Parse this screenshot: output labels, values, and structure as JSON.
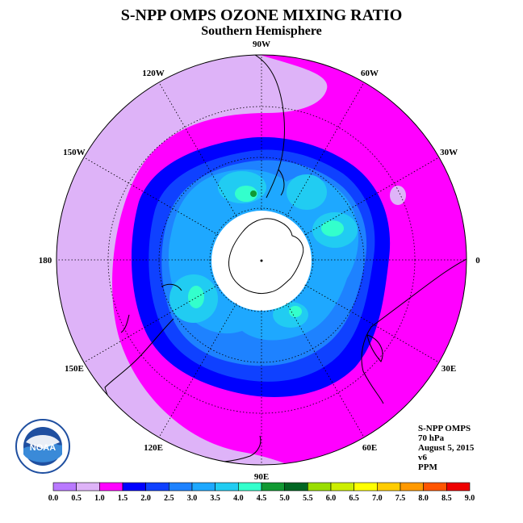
{
  "title": "S-NPP OMPS OZONE MIXING RATIO",
  "subtitle": "Southern Hemisphere",
  "longitudes": [
    {
      "label": "90W",
      "angle": -90
    },
    {
      "label": "60W",
      "angle": -60
    },
    {
      "label": "30W",
      "angle": -30
    },
    {
      "label": "0",
      "angle": 0
    },
    {
      "label": "30E",
      "angle": 30
    },
    {
      "label": "60E",
      "angle": 60
    },
    {
      "label": "90E",
      "angle": 90
    },
    {
      "label": "120E",
      "angle": 120
    },
    {
      "label": "150E",
      "angle": 150
    },
    {
      "label": "180",
      "angle": 180
    },
    {
      "label": "150W",
      "angle": -150
    },
    {
      "label": "120W",
      "angle": -120
    }
  ],
  "info": {
    "instrument": "S-NPP OMPS",
    "level": "70 hPa",
    "date": "August 5, 2015",
    "version": "v6",
    "units": "PPM"
  },
  "colorbar": {
    "labels": [
      "0.0",
      "0.5",
      "1.0",
      "1.5",
      "2.0",
      "2.5",
      "3.0",
      "3.5",
      "4.0",
      "4.5",
      "5.0",
      "5.5",
      "6.0",
      "6.5",
      "7.0",
      "7.5",
      "8.0",
      "8.5",
      "9.0"
    ],
    "colors": [
      "#b979ff",
      "#deb3f8",
      "#ff00ff",
      "#0000ff",
      "#0f41ff",
      "#1e82ff",
      "#1ea8ff",
      "#21ccf2",
      "#33ffcc",
      "#119933",
      "#006622",
      "#99dd00",
      "#ccee00",
      "#ffff00",
      "#ffcc00",
      "#ff9900",
      "#ff5500",
      "#ee0000",
      "#885533"
    ]
  },
  "logo": {
    "text": "NOAA"
  }
}
